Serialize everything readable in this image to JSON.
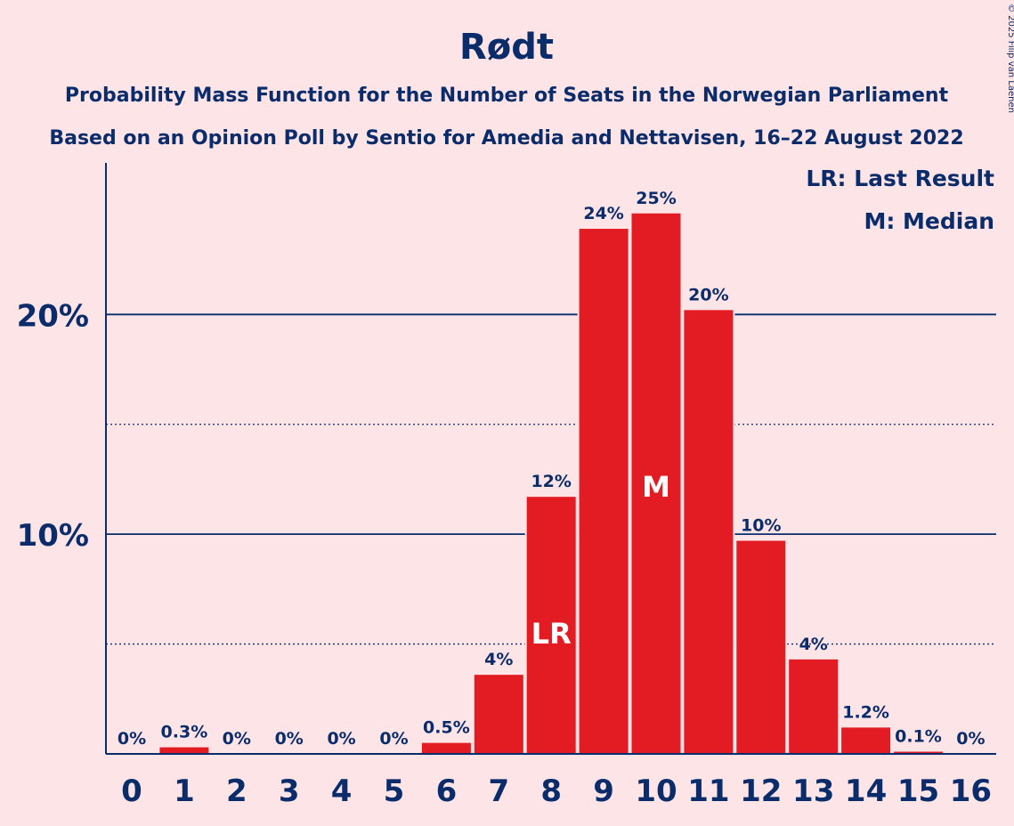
{
  "chart_data": {
    "type": "bar",
    "title": "Rødt",
    "subtitle_lines": [
      "Probability Mass Function for the Number of Seats in the Norwegian Parliament",
      "Based on an Opinion Poll by Sentio for Amedia and Nettavisen, 16–22 August 2022"
    ],
    "copyright": "© 2025 Filip van Laenen",
    "legend": {
      "last_result": "LR: Last Result",
      "median": "M: Median",
      "placement": "top-right"
    },
    "categories": [
      "0",
      "1",
      "2",
      "3",
      "4",
      "5",
      "6",
      "7",
      "8",
      "9",
      "10",
      "11",
      "12",
      "13",
      "14",
      "15",
      "16"
    ],
    "values": [
      0,
      0.3,
      0,
      0,
      0,
      0,
      0.5,
      3.6,
      11.7,
      23.9,
      24.6,
      20.2,
      9.7,
      4.3,
      1.2,
      0.1,
      0
    ],
    "data_labels": [
      "0%",
      "0.3%",
      "0%",
      "0%",
      "0%",
      "0%",
      "0.5%",
      "4%",
      "12%",
      "24%",
      "25%",
      "20%",
      "10%",
      "4%",
      "1.2%",
      "0.1%",
      "0%"
    ],
    "last_result_seat": "8",
    "median_seat": "10",
    "bar_marker_labels": {
      "last_result": "LR",
      "median": "M"
    },
    "ylim": [
      0,
      26.9
    ],
    "major_ticks": [
      10,
      20
    ],
    "major_tick_labels": [
      "10%",
      "20%"
    ],
    "minor_gridlines": [
      5,
      15
    ],
    "colors": {
      "bar": "#E31C23",
      "text": "#0B2C6B",
      "background": "#FDE4E6"
    }
  }
}
